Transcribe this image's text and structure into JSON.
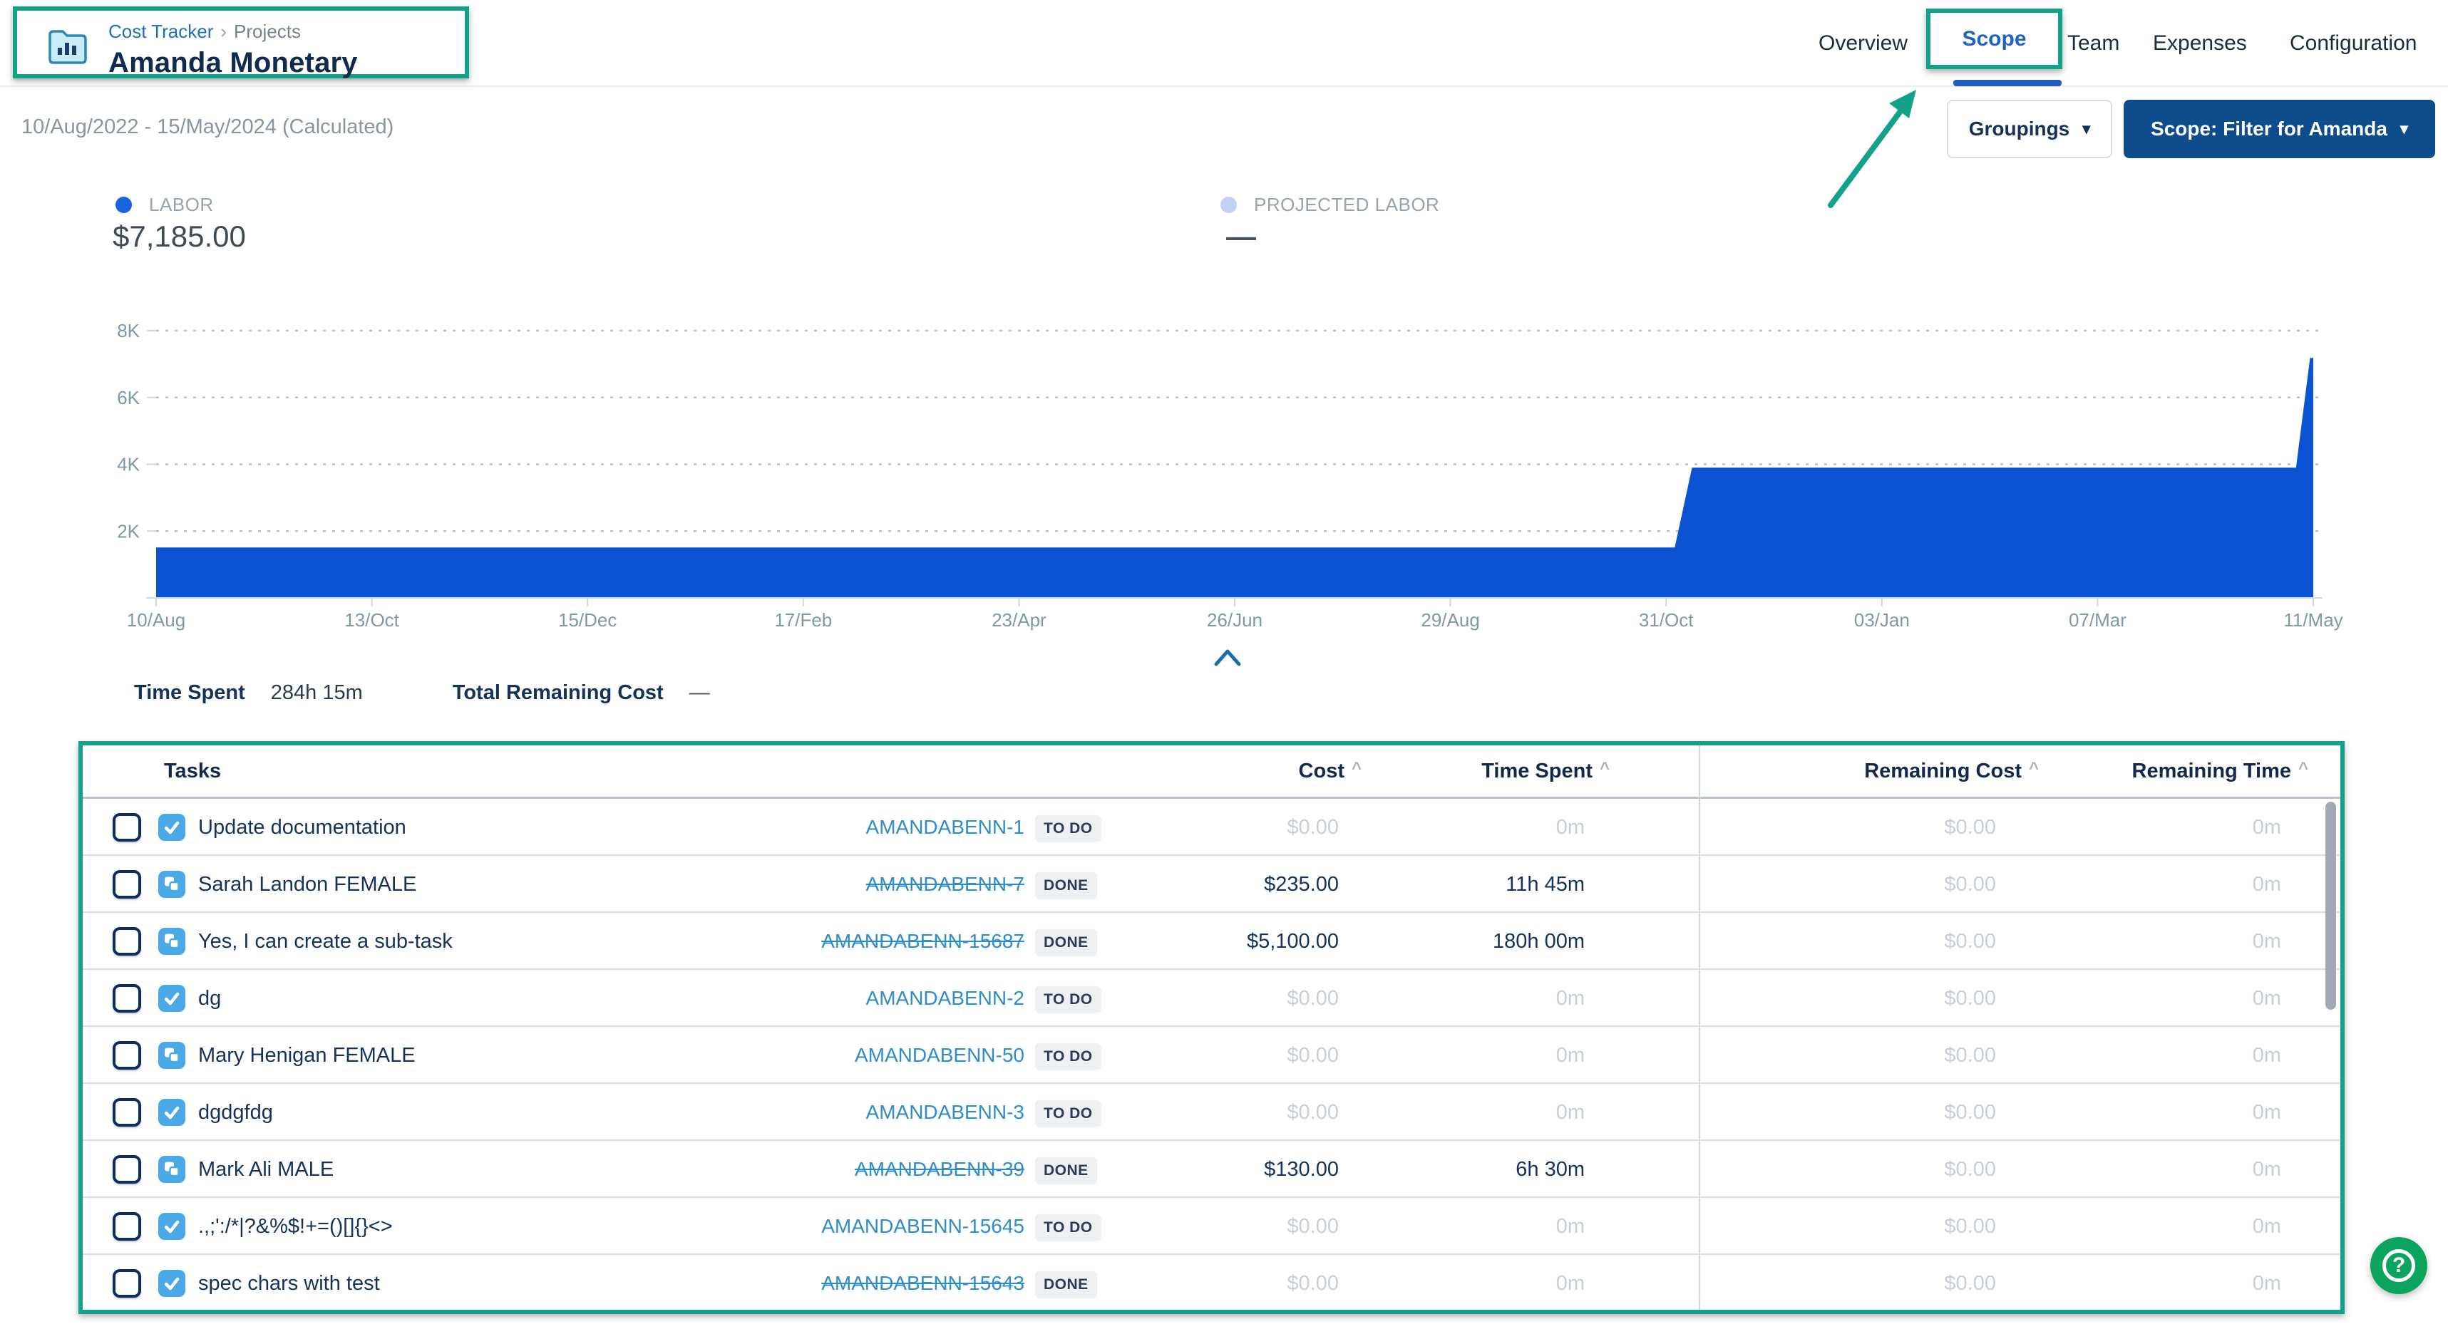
{
  "colors": {
    "green": "#12A189",
    "chartblue": "#0B53D3",
    "link": "#2E8DC9",
    "navy": "#15325B",
    "btnnavy": "#0E4C8C",
    "help": "#0BA45F",
    "labordot": "#1A63E0",
    "projdot": "#C3CFF3"
  },
  "header": {
    "breadcrumb": {
      "app": "Cost Tracker",
      "separator": "›",
      "section": "Projects"
    },
    "title": "Amanda Monetary",
    "tabs": [
      {
        "label": "Overview",
        "active": false
      },
      {
        "label": "Scope",
        "active": true
      },
      {
        "label": "Team",
        "active": false
      },
      {
        "label": "Expenses",
        "active": false
      },
      {
        "label": "Configuration",
        "active": false
      }
    ]
  },
  "toolbar": {
    "date_range": "10/Aug/2022 - 15/May/2024 (Calculated)",
    "groupings_label": "Groupings",
    "scope_filter_label": "Scope: Filter for Amanda"
  },
  "chart_data": {
    "type": "area",
    "title": "Labor cost over project timeline",
    "legend": [
      {
        "label": "LABOR",
        "value": "$7,185.00",
        "color": "#1A63E0"
      },
      {
        "label": "PROJECTED LABOR",
        "value": "—",
        "color": "#C3CFF3"
      }
    ],
    "series": [
      {
        "name": "Labor",
        "points": [
          {
            "x": 0.0,
            "y": 1510
          },
          {
            "x": 0.704,
            "y": 1510
          },
          {
            "x": 0.712,
            "y": 3900
          },
          {
            "x": 0.992,
            "y": 3900
          },
          {
            "x": 0.9985,
            "y": 7185
          },
          {
            "x": 1.0,
            "y": 7185
          }
        ]
      }
    ],
    "x_tick_labels": [
      "10/Aug",
      "13/Oct",
      "15/Dec",
      "17/Feb",
      "23/Apr",
      "26/Jun",
      "29/Aug",
      "31/Oct",
      "03/Jan",
      "07/Mar",
      "11/May"
    ],
    "y_ticks": [
      {
        "label": "2K",
        "value": 2000
      },
      {
        "label": "4K",
        "value": 4000
      },
      {
        "label": "6K",
        "value": 6000
      },
      {
        "label": "8K",
        "value": 8000
      }
    ],
    "ylim": [
      0,
      8000
    ],
    "grid": "dotted-horizontal",
    "legend_position": "top"
  },
  "totals": {
    "time_spent_label": "Time Spent",
    "time_spent_value": "284h 15m",
    "total_remaining_label": "Total Remaining Cost",
    "total_remaining_value": "—"
  },
  "table": {
    "columns": [
      "Tasks",
      "Cost",
      "Time Spent",
      "Remaining Cost",
      "Remaining Time"
    ],
    "rows": [
      {
        "type": "task",
        "name": "Update documentation",
        "key": "AMANDABENN-1",
        "status": "TO DO",
        "cost": "$0.00",
        "time_spent": "0m",
        "remaining_cost": "$0.00",
        "remaining_time": "0m"
      },
      {
        "type": "subtask",
        "name": "Sarah Landon FEMALE",
        "key": "AMANDABENN-7",
        "status": "DONE",
        "cost": "$235.00",
        "time_spent": "11h 45m",
        "remaining_cost": "$0.00",
        "remaining_time": "0m"
      },
      {
        "type": "subtask",
        "name": "Yes, I can create a sub-task",
        "key": "AMANDABENN-15687",
        "status": "DONE",
        "cost": "$5,100.00",
        "time_spent": "180h 00m",
        "remaining_cost": "$0.00",
        "remaining_time": "0m"
      },
      {
        "type": "task",
        "name": "dg",
        "key": "AMANDABENN-2",
        "status": "TO DO",
        "cost": "$0.00",
        "time_spent": "0m",
        "remaining_cost": "$0.00",
        "remaining_time": "0m"
      },
      {
        "type": "subtask",
        "name": "Mary Henigan FEMALE",
        "key": "AMANDABENN-50",
        "status": "TO DO",
        "cost": "$0.00",
        "time_spent": "0m",
        "remaining_cost": "$0.00",
        "remaining_time": "0m"
      },
      {
        "type": "task",
        "name": "dgdgfdg",
        "key": "AMANDABENN-3",
        "status": "TO DO",
        "cost": "$0.00",
        "time_spent": "0m",
        "remaining_cost": "$0.00",
        "remaining_time": "0m"
      },
      {
        "type": "subtask",
        "name": "Mark Ali MALE",
        "key": "AMANDABENN-39",
        "status": "DONE",
        "cost": "$130.00",
        "time_spent": "6h 30m",
        "remaining_cost": "$0.00",
        "remaining_time": "0m"
      },
      {
        "type": "task",
        "name": ".,;':/*|?&%$!+=()[]{}<>",
        "key": "AMANDABENN-15645",
        "status": "TO DO",
        "cost": "$0.00",
        "time_spent": "0m",
        "remaining_cost": "$0.00",
        "remaining_time": "0m"
      },
      {
        "type": "task",
        "name": "spec chars with test",
        "key": "AMANDABENN-15643",
        "status": "DONE",
        "cost": "$0.00",
        "time_spent": "0m",
        "remaining_cost": "$0.00",
        "remaining_time": "0m"
      }
    ]
  },
  "help_button": {
    "symbol": "?"
  }
}
